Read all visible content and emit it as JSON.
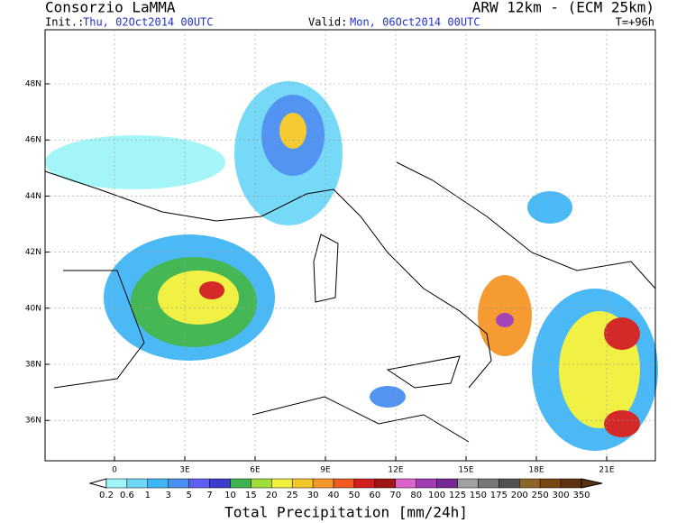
{
  "header": {
    "title": "Consorzio LaMMA",
    "model": "ARW 12km - (ECM 25km)",
    "init_label": "Init.:",
    "init": "Thu, 02Oct2014 00UTC",
    "valid_label": "Valid:",
    "valid": "Mon, 06Oct2014 00UTC",
    "step": "T=+96h"
  },
  "map": {
    "lat_ticks": [
      "48N",
      "46N",
      "44N",
      "42N",
      "40N",
      "38N",
      "36N"
    ],
    "lon_ticks": [
      "0",
      "3E",
      "6E",
      "9E",
      "12E",
      "15E",
      "18E",
      "21E"
    ]
  },
  "colorbar": {
    "levels": [
      "0.2",
      "0.6",
      "1",
      "3",
      "5",
      "7",
      "10",
      "15",
      "20",
      "25",
      "30",
      "40",
      "50",
      "60",
      "70",
      "80",
      "100",
      "125",
      "150",
      "175",
      "200",
      "250",
      "300",
      "350"
    ],
    "colors": [
      "#9ef4f8",
      "#6fd8f8",
      "#41b6f5",
      "#4a8ef2",
      "#5a5ff0",
      "#3c3cd0",
      "#3cb44b",
      "#9fdc3c",
      "#f0f03c",
      "#f5c828",
      "#f59628",
      "#f05a1e",
      "#d21e1e",
      "#a01414",
      "#dc64c8",
      "#a03cb4",
      "#782896",
      "#a0a0a0",
      "#787878",
      "#505050",
      "#8c6428",
      "#784614",
      "#5a3210"
    ],
    "caption": "Total Precipitation [mm/24h]"
  }
}
